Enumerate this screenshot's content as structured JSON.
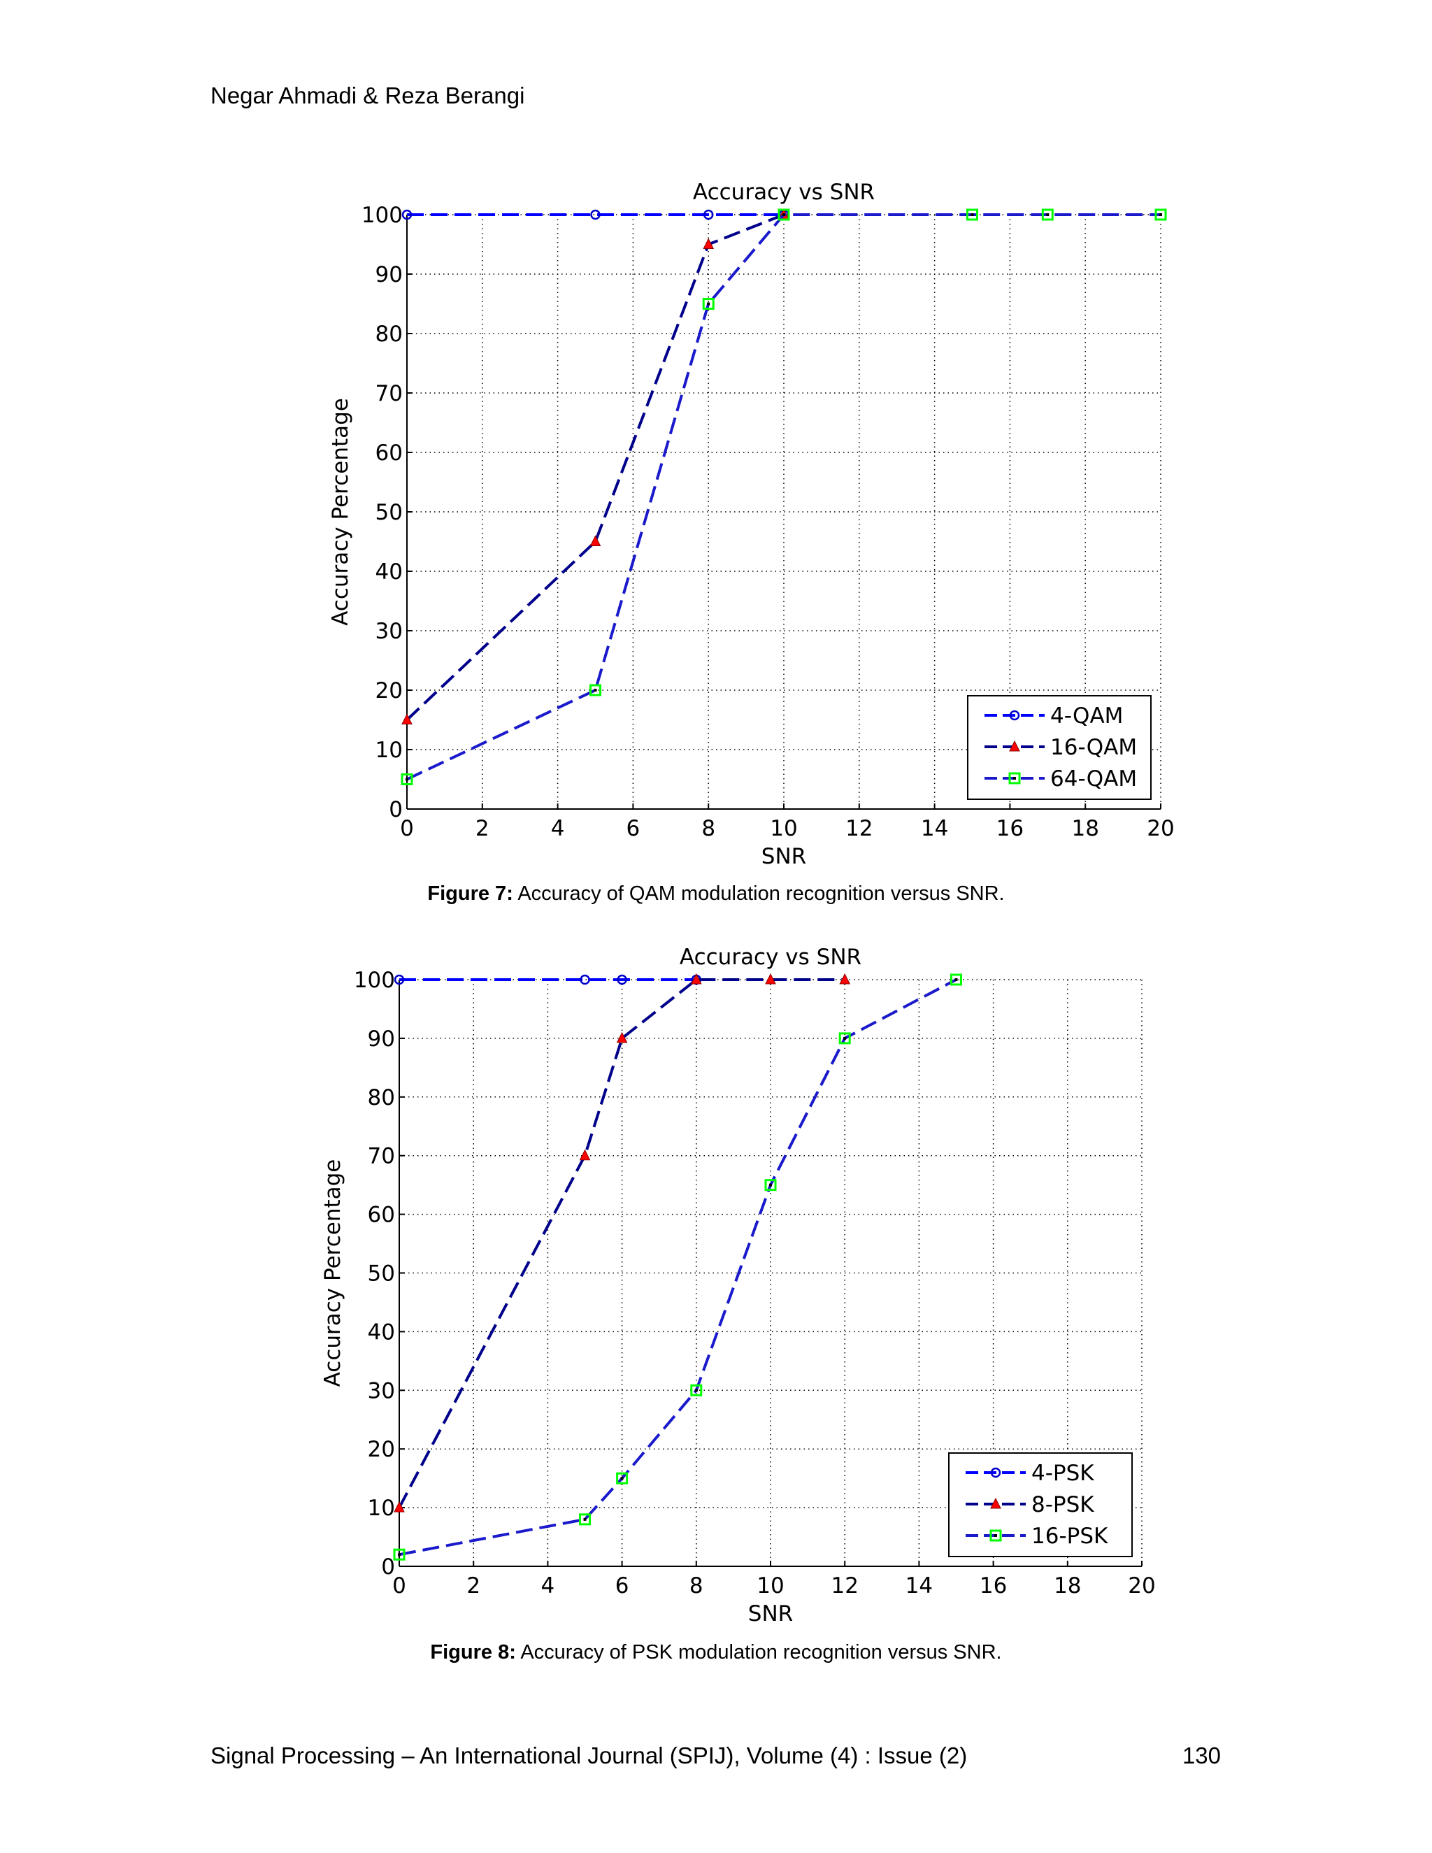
{
  "header": {
    "authors": "Negar Ahmadi & Reza Berangi"
  },
  "footer": {
    "journal": "Signal Processing – An International Journal (SPIJ), Volume (4) : Issue (2)",
    "page_number": "130"
  },
  "figures": [
    {
      "caption_label": "Figure 7:",
      "caption_text": " Accuracy of QAM modulation recognition versus SNR."
    },
    {
      "caption_label": "Figure 8:",
      "caption_text": " Accuracy of PSK modulation recognition versus SNR."
    }
  ],
  "chart_data": [
    {
      "type": "line",
      "title": "Accuracy vs SNR",
      "xlabel": "SNR",
      "ylabel": "Accuracy Percentage",
      "xlim": [
        0,
        20
      ],
      "ylim": [
        0,
        100
      ],
      "xticks": [
        0,
        2,
        4,
        6,
        8,
        10,
        12,
        14,
        16,
        18,
        20
      ],
      "yticks": [
        0,
        10,
        20,
        30,
        40,
        50,
        60,
        70,
        80,
        90,
        100
      ],
      "grid": true,
      "legend_position": "bottom-right",
      "series": [
        {
          "name": "4-QAM",
          "marker": "circle",
          "color": "#0000ff",
          "markerColor": "#0000cc",
          "x": [
            0,
            5,
            8,
            10
          ],
          "y": [
            100,
            100,
            100,
            100
          ]
        },
        {
          "name": "16-QAM",
          "marker": "triangle",
          "color": "#00008b",
          "markerColor": "#ff0000",
          "x": [
            0,
            5,
            8,
            10
          ],
          "y": [
            15,
            45,
            95,
            100
          ]
        },
        {
          "name": "64-QAM",
          "marker": "square",
          "color": "#1a1acc",
          "markerColor": "#00ff00",
          "x": [
            0,
            5,
            8,
            10,
            15,
            17,
            20
          ],
          "y": [
            5,
            20,
            85,
            100,
            100,
            100,
            100
          ]
        }
      ]
    },
    {
      "type": "line",
      "title": "Accuracy vs SNR",
      "xlabel": "SNR",
      "ylabel": "Accuracy Percentage",
      "xlim": [
        0,
        20
      ],
      "ylim": [
        0,
        100
      ],
      "xticks": [
        0,
        2,
        4,
        6,
        8,
        10,
        12,
        14,
        16,
        18,
        20
      ],
      "yticks": [
        0,
        10,
        20,
        30,
        40,
        50,
        60,
        70,
        80,
        90,
        100
      ],
      "grid": true,
      "legend_position": "bottom-right",
      "series": [
        {
          "name": "4-PSK",
          "marker": "circle",
          "color": "#0000ff",
          "markerColor": "#0000cc",
          "x": [
            0,
            5,
            6,
            8
          ],
          "y": [
            100,
            100,
            100,
            100
          ]
        },
        {
          "name": "8-PSK",
          "marker": "triangle",
          "color": "#00008b",
          "markerColor": "#ff0000",
          "x": [
            0,
            5,
            6,
            8,
            10,
            12
          ],
          "y": [
            10,
            70,
            90,
            100,
            100,
            100
          ]
        },
        {
          "name": "16-PSK",
          "marker": "square",
          "color": "#1a1acc",
          "markerColor": "#00ff00",
          "x": [
            0,
            5,
            6,
            8,
            10,
            12,
            15
          ],
          "y": [
            2,
            8,
            15,
            30,
            65,
            90,
            100
          ]
        }
      ]
    }
  ]
}
